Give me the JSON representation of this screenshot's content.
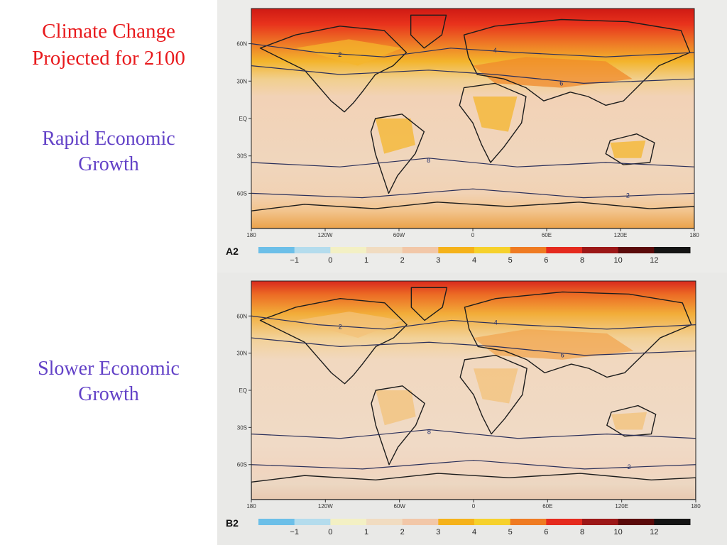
{
  "slide": {
    "title": "Climate Change Projected for 2100",
    "title_line1": "Climate Change",
    "title_line2": "Projected for 2100",
    "title_color": "#e8191c",
    "scenario_a2_line1": "Rapid Economic",
    "scenario_a2_line2": "Growth",
    "scenario_b2_line1": "Slower Economic",
    "scenario_b2_line2": "Growth",
    "scenario_color": "#6241c7"
  },
  "maps": [
    {
      "code": "A2",
      "caption": "Rapid Economic Growth",
      "lat_labels": [
        "60N",
        "30N",
        "EQ",
        "30S",
        "60S"
      ],
      "lon_labels": [
        "180",
        "120W",
        "60W",
        "0",
        "60E",
        "120E",
        "180"
      ],
      "contour_labels": [
        "2",
        "4",
        "6",
        "8"
      ]
    },
    {
      "code": "B2",
      "caption": "Slower Economic Growth",
      "lat_labels": [
        "60N",
        "30N",
        "EQ",
        "30S",
        "60S"
      ],
      "lon_labels": [
        "180",
        "120W",
        "60W",
        "0",
        "60E",
        "120E",
        "180"
      ],
      "contour_labels": [
        "2",
        "4",
        "6",
        "8"
      ]
    }
  ],
  "colorbar": {
    "tick_labels": [
      "−1",
      "0",
      "1",
      "2",
      "3",
      "4",
      "5",
      "6",
      "8",
      "10",
      "12"
    ],
    "colors": [
      "#6cbfe8",
      "#b4dced",
      "#f3f0c4",
      "#f1dcc1",
      "#f2c7a8",
      "#f5b21a",
      "#f6d12c",
      "#ef7b22",
      "#e52a1e",
      "#9c1717",
      "#5a0a0a",
      "#141414"
    ]
  }
}
